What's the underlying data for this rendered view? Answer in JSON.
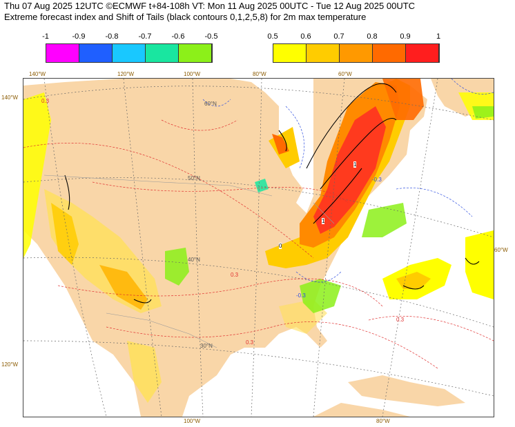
{
  "header": {
    "title_line1": "Thu 07 Aug 2025 12UTC ©ECMWF t+84-108h  VT: Mon 11 Aug 2025 00UTC - Tue 12 Aug 2025 00UTC",
    "title_line2": "Extreme forecast index and Shift of Tails (black contours 0,1,2,5,8) for 2m max temperature"
  },
  "legend": {
    "negative": {
      "ticks": [
        "-1",
        "-0.9",
        "-0.8",
        "-0.7",
        "-0.6",
        "-0.5"
      ],
      "colors": [
        "#ff00ff",
        "#1f5fff",
        "#19c8ff",
        "#19e6a0",
        "#8cf019"
      ]
    },
    "positive": {
      "ticks": [
        "0.5",
        "0.6",
        "0.7",
        "0.8",
        "0.9",
        "1"
      ],
      "colors": [
        "#ffff00",
        "#ffcc00",
        "#ff9900",
        "#ff6a00",
        "#ff1e1e"
      ]
    }
  },
  "map": {
    "land_color": "#f9d6a8",
    "ocean_color": "#ffffff",
    "longitude_labels_top": [
      "140°W",
      "120°W",
      "100°W",
      "80°W",
      "60°W"
    ],
    "longitude_labels_bottom": [
      "100°W",
      "80°W"
    ],
    "latitude_labels_left": [
      "140°W",
      "120°W"
    ],
    "latitude_labels_right": [
      "60°W"
    ],
    "inner_labels": [
      "60°N",
      "50°N",
      "40°N",
      "30°N"
    ],
    "contour_labels_pos": [
      "0.3"
    ],
    "contour_labels_neg": [
      "-0.3"
    ],
    "sot_labels": [
      "1",
      "1",
      "0"
    ]
  }
}
